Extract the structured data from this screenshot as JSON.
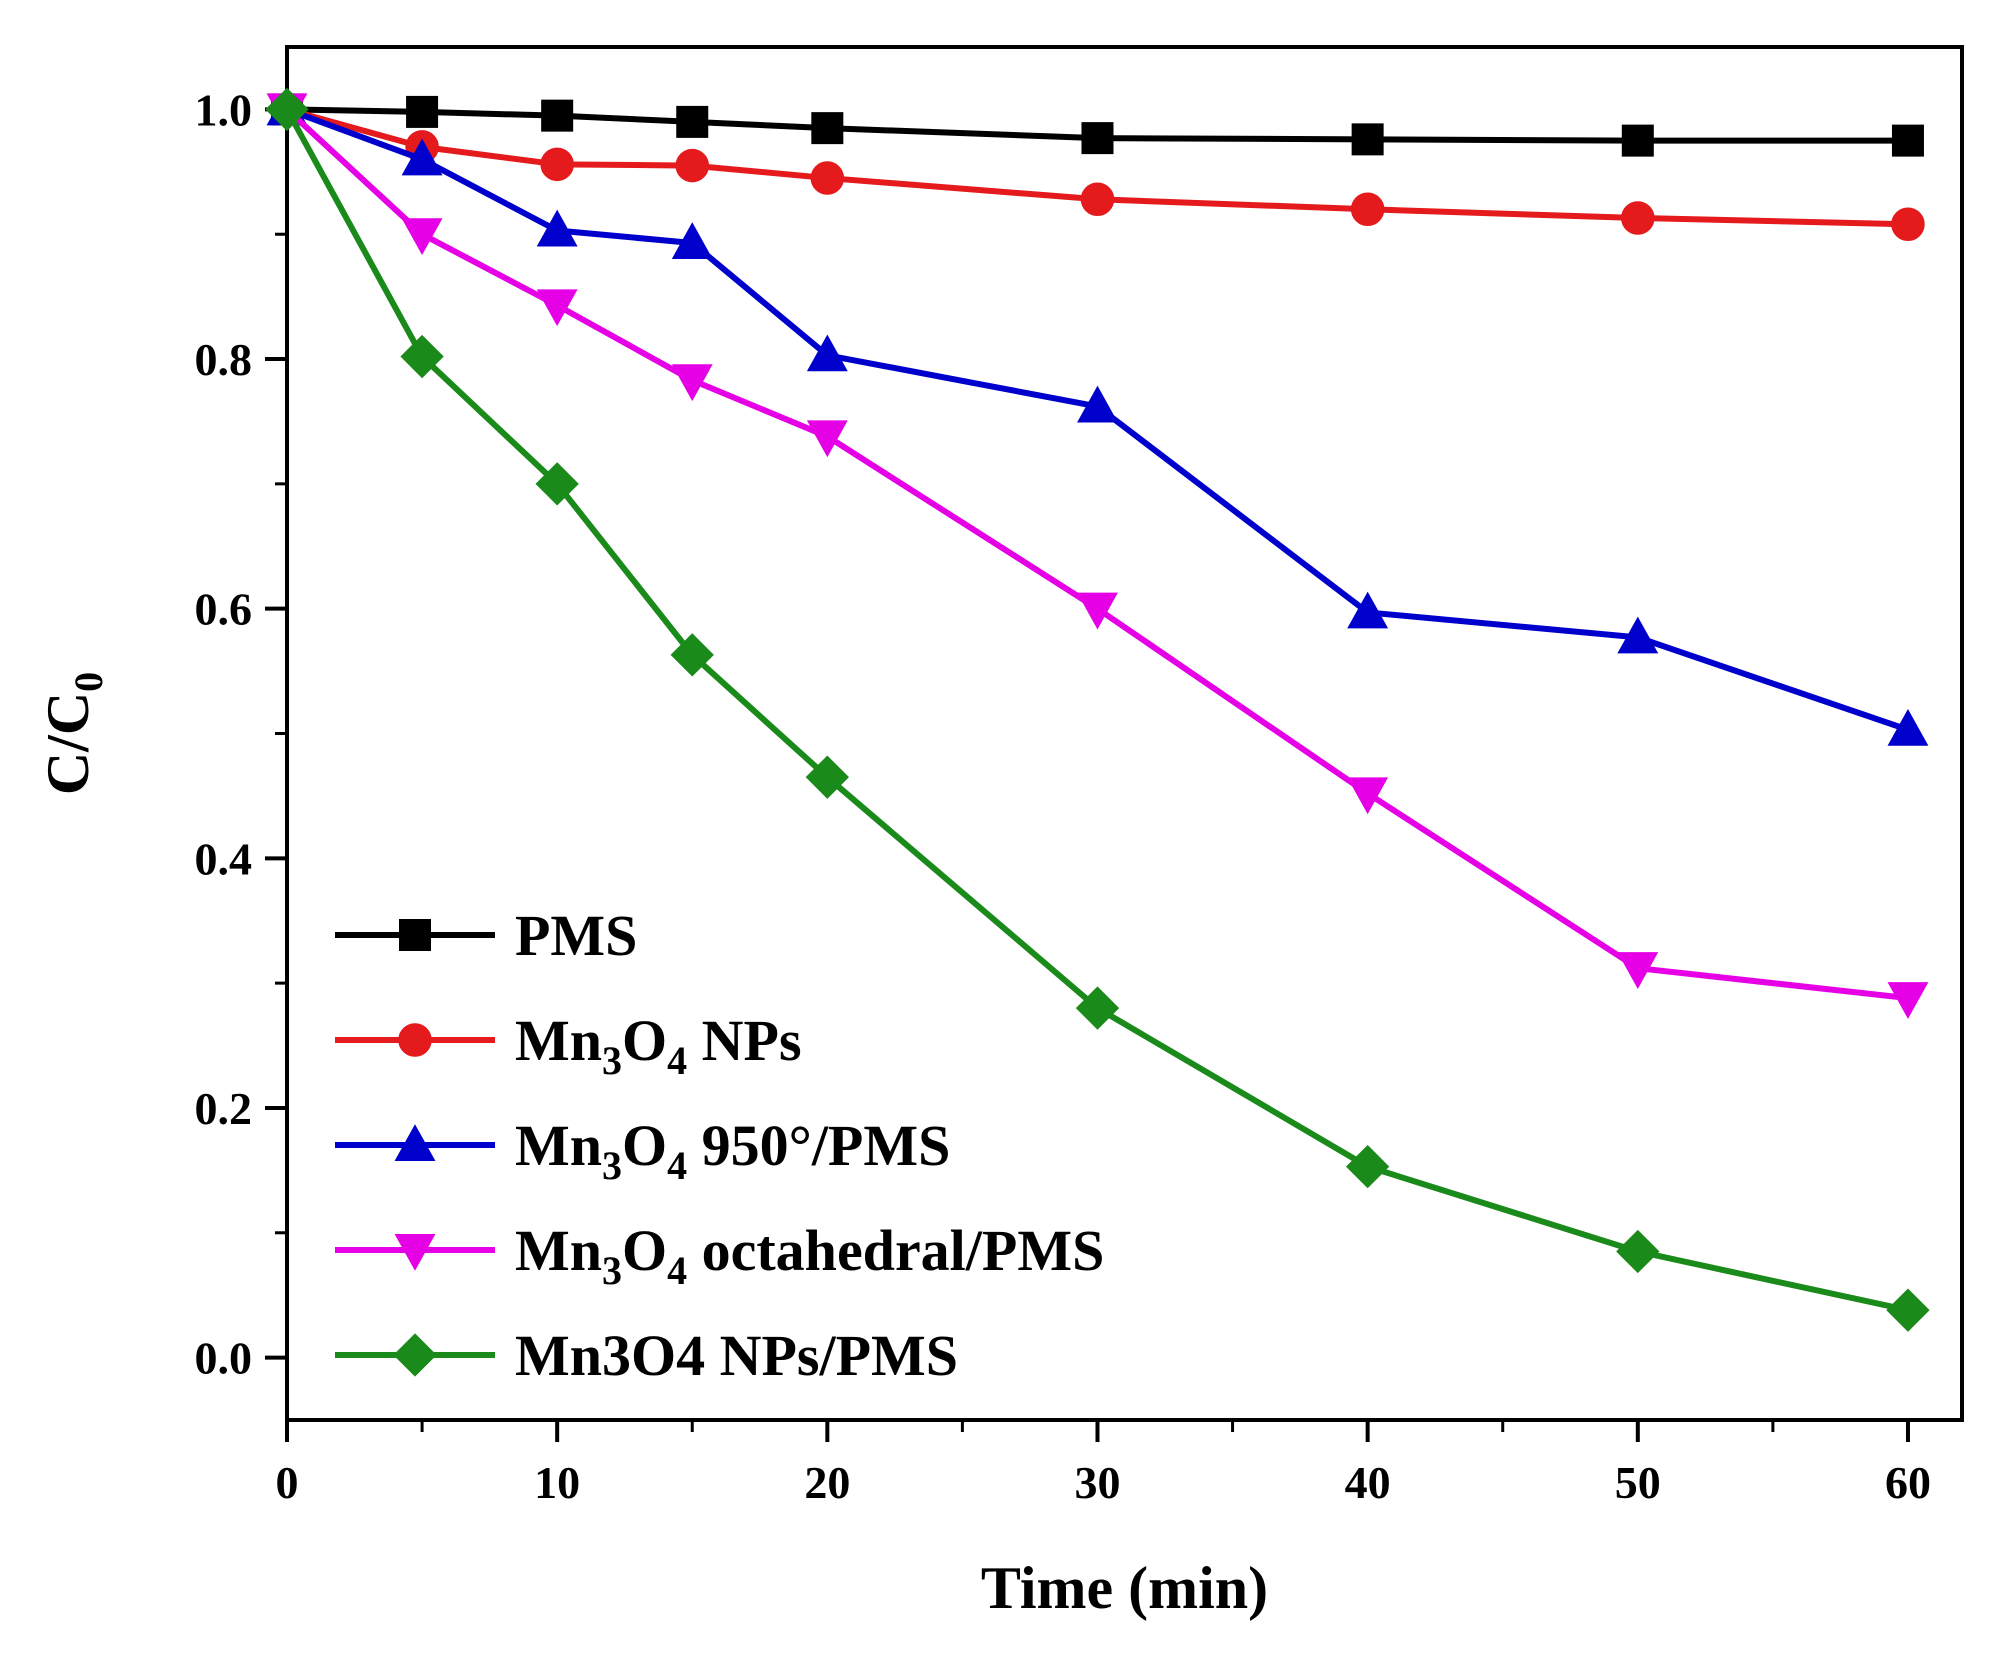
{
  "chart_data": {
    "type": "line",
    "xlabel": "Time (min)",
    "ylabel": {
      "main": "C/C",
      "sub": "0"
    },
    "xlim": [
      0,
      62
    ],
    "ylim": [
      -0.05,
      1.05
    ],
    "x_ticks": [
      0,
      10,
      20,
      30,
      40,
      50,
      60
    ],
    "y_ticks": [
      0.0,
      0.2,
      0.4,
      0.6,
      0.8,
      1.0
    ],
    "x_tick_labels": [
      "0",
      "10",
      "20",
      "30",
      "40",
      "50",
      "60"
    ],
    "y_tick_labels": [
      "0.0",
      "0.2",
      "0.4",
      "0.6",
      "0.8",
      "1.0"
    ],
    "legend_position": "bottom-left",
    "grid": false,
    "x": [
      0,
      5,
      10,
      15,
      20,
      30,
      40,
      50,
      60
    ],
    "series": [
      {
        "name_parts": [
          {
            "text": "PMS"
          }
        ],
        "color": "#000000",
        "marker": "square",
        "values": [
          1.0,
          0.998,
          0.995,
          0.99,
          0.985,
          0.977,
          0.976,
          0.975,
          0.975
        ]
      },
      {
        "name_parts": [
          {
            "text": "Mn"
          },
          {
            "text": "3",
            "sub": true
          },
          {
            "text": "O"
          },
          {
            "text": "4",
            "sub": true
          },
          {
            "text": " NPs"
          }
        ],
        "color": "#e41a1c",
        "marker": "circle",
        "values": [
          1.0,
          0.97,
          0.956,
          0.955,
          0.945,
          0.928,
          0.92,
          0.913,
          0.908
        ]
      },
      {
        "name_parts": [
          {
            "text": "Mn"
          },
          {
            "text": "3",
            "sub": true
          },
          {
            "text": "O"
          },
          {
            "text": "4",
            "sub": true
          },
          {
            "text": " 950°/PMS"
          }
        ],
        "color": "#0000cc",
        "marker": "triangle-up",
        "values": [
          1.0,
          0.96,
          0.903,
          0.893,
          0.803,
          0.762,
          0.597,
          0.577,
          0.503
        ]
      },
      {
        "name_parts": [
          {
            "text": "Mn"
          },
          {
            "text": "3",
            "sub": true
          },
          {
            "text": "O"
          },
          {
            "text": "4",
            "sub": true
          },
          {
            "text": " octahedral/PMS"
          }
        ],
        "color": "#e600e6",
        "marker": "triangle-down",
        "values": [
          1.0,
          0.9,
          0.843,
          0.783,
          0.738,
          0.6,
          0.452,
          0.312,
          0.288
        ]
      },
      {
        "name_parts": [
          {
            "text": "Mn3O4 NPs/PMS"
          }
        ],
        "color": "#1a8a1a",
        "marker": "diamond",
        "values": [
          1.0,
          0.802,
          0.7,
          0.563,
          0.465,
          0.28,
          0.153,
          0.085,
          0.038
        ]
      }
    ]
  }
}
